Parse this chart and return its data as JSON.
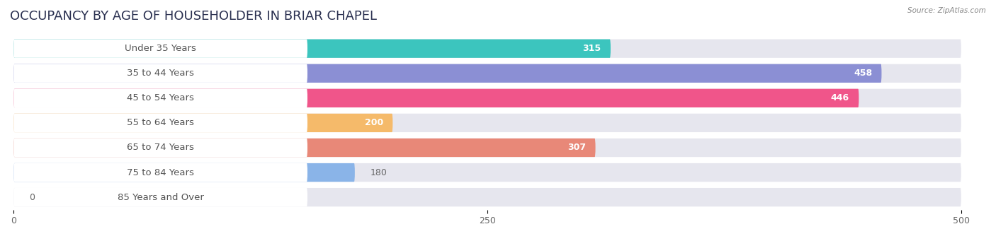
{
  "title": "OCCUPANCY BY AGE OF HOUSEHOLDER IN BRIAR CHAPEL",
  "source": "Source: ZipAtlas.com",
  "categories": [
    "Under 35 Years",
    "35 to 44 Years",
    "45 to 54 Years",
    "55 to 64 Years",
    "65 to 74 Years",
    "75 to 84 Years",
    "85 Years and Over"
  ],
  "values": [
    315,
    458,
    446,
    200,
    307,
    180,
    0
  ],
  "bar_colors": [
    "#3cc5be",
    "#8b8fd4",
    "#f0558a",
    "#f5ba6a",
    "#e88878",
    "#8ab4e8",
    "#c8a8d8"
  ],
  "bar_bg_color": "#e6e6ee",
  "xlim_max": 500,
  "xticks": [
    0,
    250,
    500
  ],
  "title_fontsize": 13,
  "label_fontsize": 9.5,
  "value_fontsize": 9,
  "bg_color": "#ffffff",
  "grid_color": "#ffffff",
  "label_bg_color": "#ffffff",
  "label_text_color": "#555555",
  "value_color_inside": "#ffffff",
  "value_color_outside": "#666666"
}
